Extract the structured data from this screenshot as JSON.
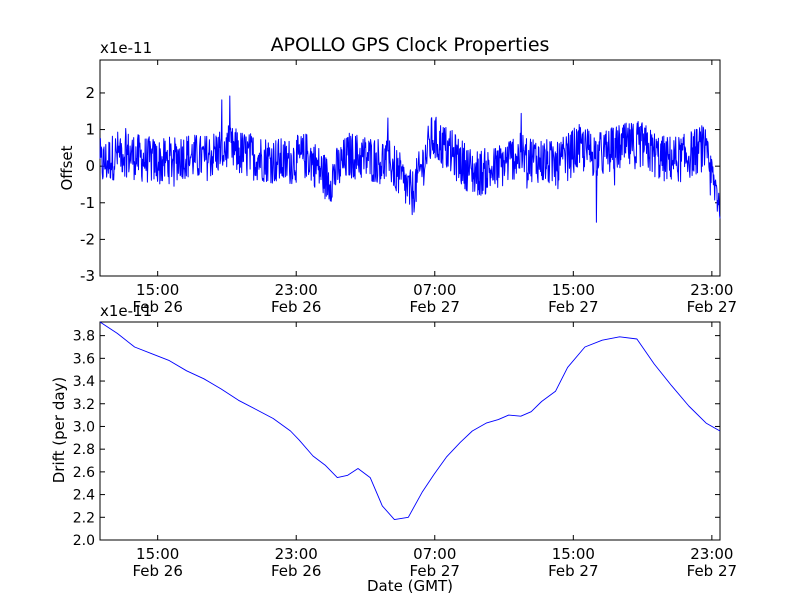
{
  "title": "APOLLO GPS Clock Properties",
  "xlabel": "Date (GMT)",
  "chart_data": [
    {
      "type": "line",
      "title": "APOLLO GPS Clock Properties",
      "xlabel": "",
      "ylabel": "Offset",
      "multiplier": "x1e-11",
      "ylim": [
        -3,
        2.9
      ],
      "yticks": [
        -3,
        -2,
        -1,
        0,
        1,
        2
      ],
      "ytick_labels": [
        "-3",
        "-2",
        "-1",
        "0",
        "1",
        "2"
      ],
      "xticks": [
        {
          "time": "15:00",
          "date": "Feb 26"
        },
        {
          "time": "23:00",
          "date": "Feb 26"
        },
        {
          "time": "07:00",
          "date": "Feb 27"
        },
        {
          "time": "15:00",
          "date": "Feb 27"
        },
        {
          "time": "23:00",
          "date": "Feb 27"
        }
      ],
      "x_range_hours": [
        "2013-02-26 11:40",
        "2013-02-27 23:30"
      ],
      "grid": false,
      "series": [
        {
          "color": "#0000ff",
          "x": [
            0,
            1.2,
            2.4,
            3.6,
            4.8,
            6.0,
            7.2,
            8.4,
            9.6,
            10.8,
            12.0,
            13.2,
            14.4,
            15.6,
            16.8,
            18.0,
            19.2,
            20.4,
            21.6,
            22.8,
            24.0,
            25.2,
            26.4,
            27.6,
            28.8,
            30.0,
            31.2,
            32.4,
            33.6,
            34.8,
            35.8
          ],
          "y": [
            0.0,
            0.4,
            0.2,
            0.1,
            0.3,
            0.2,
            0.5,
            0.3,
            0.2,
            0.1,
            0.3,
            -0.4,
            0.3,
            0.2,
            0.1,
            -0.8,
            0.8,
            0.3,
            -0.2,
            -0.1,
            0.3,
            0.2,
            0.0,
            0.5,
            0.3,
            0.5,
            0.6,
            0.2,
            0.2,
            0.5,
            -1.0
          ]
        }
      ]
    },
    {
      "type": "line",
      "xlabel": "Date (GMT)",
      "ylabel": "Drift (per day)",
      "multiplier": "x1e-11",
      "ylim": [
        2.0,
        3.92
      ],
      "yticks": [
        2.0,
        2.2,
        2.4,
        2.6,
        2.8,
        3.0,
        3.2,
        3.4,
        3.6,
        3.8
      ],
      "ytick_labels": [
        "2.0",
        "2.2",
        "2.4",
        "2.6",
        "2.8",
        "3.0",
        "3.2",
        "3.4",
        "3.6",
        "3.8"
      ],
      "xticks": [
        {
          "time": "15:00",
          "date": "Feb 26"
        },
        {
          "time": "23:00",
          "date": "Feb 26"
        },
        {
          "time": "07:00",
          "date": "Feb 27"
        },
        {
          "time": "15:00",
          "date": "Feb 27"
        },
        {
          "time": "23:00",
          "date": "Feb 27"
        }
      ],
      "grid": false,
      "series": [
        {
          "color": "#0000ff",
          "x": [
            0,
            1.0,
            2.0,
            3.0,
            4.0,
            5.0,
            6.0,
            7.0,
            8.0,
            9.0,
            10.0,
            11.0,
            11.5,
            12.3,
            13.0,
            13.7,
            14.3,
            14.9,
            15.6,
            16.3,
            17.0,
            17.8,
            18.6,
            19.3,
            20.0,
            20.8,
            21.5,
            22.3,
            23.0,
            23.6,
            24.3,
            24.9,
            25.5,
            26.3,
            27.0,
            28.0,
            29.0,
            30.0,
            31.0,
            32.0,
            33.0,
            34.0,
            35.0,
            35.8
          ],
          "y": [
            3.92,
            3.82,
            3.7,
            3.64,
            3.58,
            3.49,
            3.42,
            3.33,
            3.23,
            3.15,
            3.07,
            2.96,
            2.88,
            2.74,
            2.66,
            2.55,
            2.57,
            2.63,
            2.55,
            2.3,
            2.18,
            2.2,
            2.42,
            2.58,
            2.73,
            2.86,
            2.96,
            3.03,
            3.06,
            3.1,
            3.09,
            3.13,
            3.22,
            3.31,
            3.52,
            3.7,
            3.76,
            3.79,
            3.77,
            3.55,
            3.36,
            3.18,
            3.03,
            2.96
          ]
        }
      ]
    }
  ]
}
